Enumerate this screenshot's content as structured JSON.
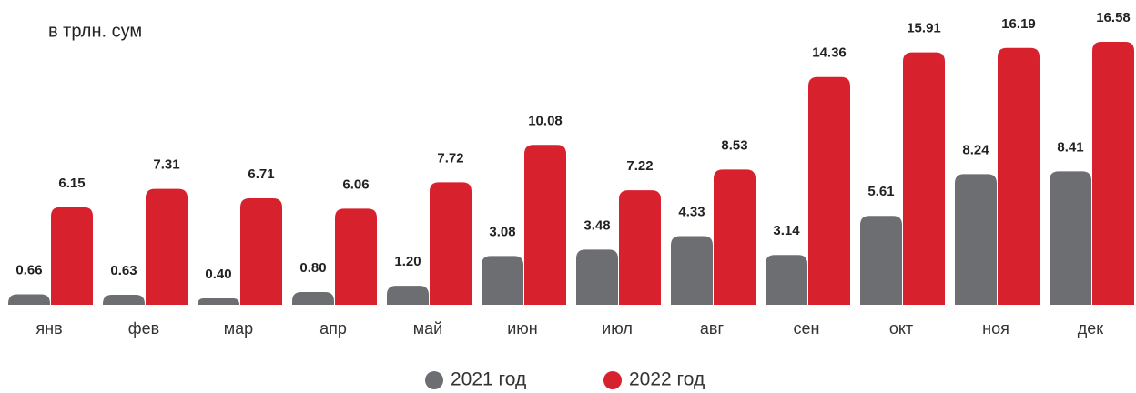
{
  "chart_data": {
    "type": "bar",
    "subtitle": "в трлн. сум",
    "categories": [
      "янв",
      "фев",
      "мар",
      "апр",
      "май",
      "июн",
      "июл",
      "авг",
      "сен",
      "окт",
      "ноя",
      "дек"
    ],
    "series": [
      {
        "name": "2021 год",
        "color": "#6d6e71",
        "values": [
          0.66,
          0.63,
          0.4,
          0.8,
          1.2,
          3.08,
          3.48,
          4.33,
          3.14,
          5.61,
          8.24,
          8.41
        ],
        "value_labels": [
          "0.66",
          "0.63",
          "0.40",
          "0.80",
          "1.20",
          "3.08",
          "3.48",
          "4.33",
          "3.14",
          "5.61",
          "8.24",
          "8.41"
        ]
      },
      {
        "name": "2022 год",
        "color": "#d7222e",
        "values": [
          6.15,
          7.31,
          6.71,
          6.06,
          7.72,
          10.08,
          7.22,
          8.53,
          14.36,
          15.91,
          16.19,
          16.58
        ],
        "value_labels": [
          "6.15",
          "7.31",
          "6.71",
          "6.06",
          "7.72",
          "10.08",
          "7.22",
          "8.53",
          "14.36",
          "15.91",
          "16.19",
          "16.58"
        ]
      }
    ]
  }
}
